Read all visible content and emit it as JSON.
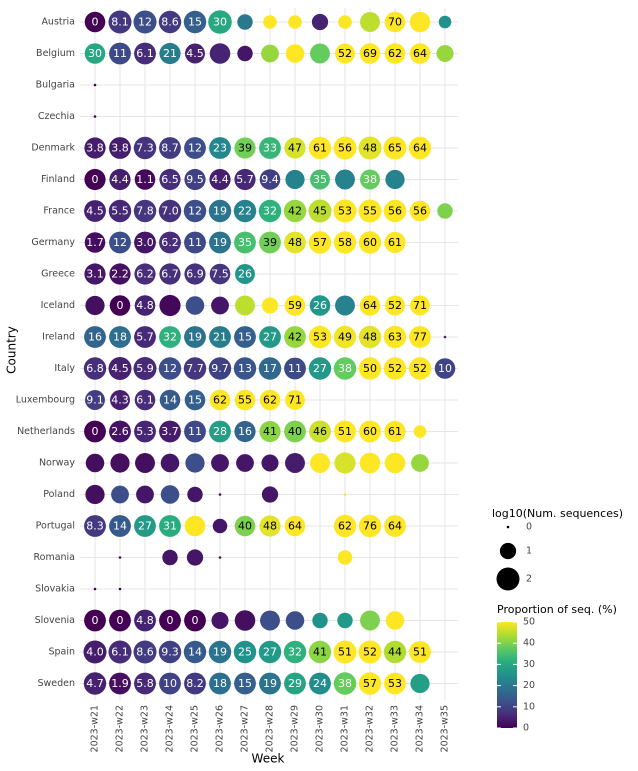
{
  "chart_data": {
    "type": "bubble",
    "x_label": "Week",
    "y_label": "Country",
    "weeks": [
      "2023-w21",
      "2023-w22",
      "2023-w23",
      "2023-w24",
      "2023-w25",
      "2023-w26",
      "2023-w27",
      "2023-w28",
      "2023-w29",
      "2023-w30",
      "2023-w31",
      "2023-w32",
      "2023-w33",
      "2023-w34",
      "2023-w35"
    ],
    "grid": true,
    "size_legend": {
      "title": "log10(Num. sequences)",
      "ticks": [
        0,
        1,
        2
      ]
    },
    "color_legend": {
      "title": "Proportion of seq. (%)",
      "clim": [
        0,
        50
      ],
      "ticks": [
        0,
        10,
        20,
        30,
        40,
        50
      ],
      "colormap": "viridis"
    },
    "rows": [
      {
        "name": "Austria",
        "values": [
          0,
          8.1,
          12,
          8.6,
          15,
          30,
          20,
          50,
          50,
          5,
          50,
          45,
          70,
          50,
          25
        ],
        "value_labels": [
          "0",
          "8.1",
          "12",
          "8.6",
          "15",
          "30",
          null,
          null,
          null,
          null,
          null,
          null,
          "70",
          null,
          null
        ],
        "sizes": [
          1.6,
          2.0,
          2.0,
          1.9,
          1.9,
          2.1,
          0.9,
          0.7,
          0.7,
          1.0,
          0.7,
          1.5,
          1.6,
          1.6,
          0.6
        ]
      },
      {
        "name": "Belgium",
        "values": [
          30,
          11,
          6.1,
          21,
          4.5,
          5,
          3,
          42,
          50,
          38,
          52,
          69,
          62,
          64,
          42
        ],
        "value_labels": [
          "30",
          "11",
          "6.1",
          "21",
          "4.5",
          null,
          null,
          null,
          null,
          null,
          "52",
          "69",
          "62",
          "64",
          null
        ],
        "sizes": [
          1.6,
          1.8,
          1.8,
          1.7,
          1.5,
          1.6,
          0.9,
          1.2,
          1.3,
          1.5,
          1.5,
          1.6,
          1.6,
          1.6,
          1.1
        ]
      },
      {
        "name": "Bulgaria",
        "values": [
          0,
          null,
          null,
          null,
          null,
          null,
          null,
          null,
          null,
          null,
          null,
          null,
          null,
          null,
          null
        ],
        "value_labels": [
          null,
          null,
          null,
          null,
          null,
          null,
          null,
          null,
          null,
          null,
          null,
          null,
          null,
          null,
          null
        ],
        "sizes": [
          0,
          null,
          null,
          null,
          null,
          null,
          null,
          null,
          null,
          null,
          null,
          null,
          null,
          null,
          null
        ]
      },
      {
        "name": "Czechia",
        "values": [
          0,
          null,
          null,
          null,
          null,
          null,
          null,
          null,
          null,
          null,
          null,
          null,
          null,
          null,
          null
        ],
        "value_labels": [
          null,
          null,
          null,
          null,
          null,
          null,
          null,
          null,
          null,
          null,
          null,
          null,
          null,
          null,
          null
        ],
        "sizes": [
          0,
          null,
          null,
          null,
          null,
          null,
          null,
          null,
          null,
          null,
          null,
          null,
          null,
          null,
          null
        ]
      },
      {
        "name": "Denmark",
        "values": [
          3.8,
          3.8,
          7.3,
          8.7,
          12,
          23,
          39,
          33,
          47,
          61,
          56,
          48,
          65,
          64,
          null
        ],
        "value_labels": [
          "3.8",
          "3.8",
          "7.3",
          "8.7",
          "12",
          "23",
          "39",
          "33",
          "47",
          "61",
          "56",
          "48",
          "65",
          "64",
          null
        ],
        "sizes": [
          1.7,
          1.8,
          1.9,
          1.8,
          1.8,
          1.8,
          1.7,
          1.8,
          1.7,
          1.9,
          2.0,
          2.0,
          2.0,
          1.9,
          null
        ]
      },
      {
        "name": "Finland",
        "values": [
          0,
          4.4,
          1.1,
          6.5,
          9.5,
          4.4,
          5.7,
          9.4,
          22,
          35,
          22,
          38,
          22,
          null,
          null
        ],
        "value_labels": [
          "0",
          "4.4",
          "1.1",
          "6.5",
          "9.5",
          "4.4",
          "5.7",
          "9.4",
          null,
          "35",
          null,
          "38",
          null,
          null,
          null
        ],
        "sizes": [
          1.7,
          1.7,
          1.6,
          1.7,
          1.7,
          1.7,
          1.7,
          1.6,
          1.4,
          1.5,
          1.5,
          1.5,
          1.4,
          null,
          null
        ]
      },
      {
        "name": "France",
        "values": [
          4.5,
          5.5,
          7.8,
          7.0,
          12,
          19,
          22,
          32,
          42,
          45,
          53,
          55,
          56,
          56,
          40
        ],
        "value_labels": [
          "4.5",
          "5.5",
          "7.8",
          "7.0",
          "12",
          "19",
          "22",
          "32",
          "42",
          "45",
          "53",
          "55",
          "56",
          "56",
          null
        ],
        "sizes": [
          1.8,
          1.9,
          1.9,
          1.9,
          1.9,
          1.9,
          1.9,
          1.9,
          1.9,
          2.0,
          2.0,
          2.0,
          1.9,
          1.6,
          0.9
        ]
      },
      {
        "name": "Germany",
        "values": [
          1.7,
          12,
          3.0,
          6.2,
          11,
          19,
          35,
          39,
          48,
          57,
          58,
          60,
          61,
          null,
          null
        ],
        "value_labels": [
          "1.7",
          "12",
          "3.0",
          "6.2",
          "11",
          "19",
          "35",
          "39",
          "48",
          "57",
          "58",
          "60",
          "61",
          null,
          null
        ],
        "sizes": [
          1.6,
          1.8,
          1.8,
          1.8,
          1.8,
          1.8,
          1.8,
          1.8,
          1.8,
          1.9,
          1.9,
          1.9,
          1.7,
          null,
          null
        ]
      },
      {
        "name": "Greece",
        "values": [
          3.1,
          2.2,
          6.2,
          6.7,
          6.9,
          7.5,
          26,
          null,
          null,
          null,
          null,
          null,
          null,
          null,
          null
        ],
        "value_labels": [
          "3.1",
          "2.2",
          "6.2",
          "6.7",
          "6.9",
          "7.5",
          "26",
          null,
          null,
          null,
          null,
          null,
          null,
          null,
          null
        ],
        "sizes": [
          1.7,
          1.7,
          1.7,
          1.7,
          1.7,
          1.6,
          1.5,
          null,
          null,
          null,
          null,
          null,
          null,
          null,
          null
        ]
      },
      {
        "name": "Iceland",
        "values": [
          2,
          0,
          4.8,
          1,
          12,
          3,
          45,
          50,
          59,
          26,
          22,
          64,
          52,
          71,
          null
        ],
        "value_labels": [
          null,
          "0",
          "4.8",
          null,
          null,
          null,
          null,
          null,
          "59",
          "26",
          null,
          "64",
          "52",
          "71",
          null
        ],
        "sizes": [
          1.4,
          1.6,
          1.6,
          1.7,
          1.3,
          1.2,
          1.5,
          1.0,
          1.6,
          1.6,
          1.5,
          1.6,
          1.5,
          1.5,
          null
        ]
      },
      {
        "name": "Ireland",
        "values": [
          16,
          18,
          5.7,
          32,
          19,
          21,
          15,
          27,
          42,
          53,
          49,
          48,
          63,
          77,
          5
        ],
        "value_labels": [
          "16",
          "18",
          "5.7",
          "32",
          "19",
          "21",
          "15",
          "27",
          "42",
          "53",
          "49",
          "48",
          "63",
          "77",
          null
        ],
        "sizes": [
          1.8,
          1.8,
          1.8,
          1.8,
          1.8,
          1.8,
          1.8,
          1.8,
          1.8,
          1.9,
          1.9,
          1.9,
          1.9,
          1.8,
          0
        ]
      },
      {
        "name": "Italy",
        "values": [
          6.8,
          4.5,
          5.9,
          12,
          7.7,
          9.7,
          13,
          17,
          11,
          27,
          38,
          50,
          52,
          52,
          10
        ],
        "value_labels": [
          "6.8",
          "4.5",
          "5.9",
          "12",
          "7.7",
          "9.7",
          "13",
          "17",
          "11",
          "27",
          "38",
          "50",
          "52",
          "52",
          "10"
        ],
        "sizes": [
          1.9,
          2.0,
          2.0,
          1.9,
          1.9,
          1.9,
          1.9,
          1.9,
          1.8,
          1.9,
          1.9,
          1.9,
          1.9,
          1.9,
          1.6
        ]
      },
      {
        "name": "Luxembourg",
        "values": [
          9.1,
          4.3,
          6.1,
          14,
          15,
          62,
          55,
          62,
          71,
          null,
          null,
          null,
          null,
          null,
          null
        ],
        "value_labels": [
          "9.1",
          "4.3",
          "6.1",
          "14",
          "15",
          "62",
          "55",
          "62",
          "71",
          null,
          null,
          null,
          null,
          null,
          null
        ],
        "sizes": [
          1.5,
          1.5,
          1.6,
          1.6,
          1.6,
          1.6,
          1.6,
          1.6,
          1.5,
          null,
          null,
          null,
          null,
          null,
          null
        ]
      },
      {
        "name": "Netherlands",
        "values": [
          0,
          2.6,
          5.3,
          3.7,
          11,
          28,
          16,
          41,
          40,
          46,
          51,
          60,
          61,
          50,
          null
        ],
        "value_labels": [
          "0",
          "2.6",
          "5.3",
          "3.7",
          "11",
          "28",
          "16",
          "41",
          "40",
          "46",
          "51",
          "60",
          "61",
          null,
          null
        ],
        "sizes": [
          1.8,
          1.8,
          1.8,
          1.8,
          1.8,
          1.8,
          1.7,
          1.7,
          1.8,
          1.8,
          1.8,
          1.8,
          1.7,
          0.6,
          null
        ]
      },
      {
        "name": "Norway",
        "values": [
          2,
          2,
          2,
          3,
          12,
          3,
          3,
          3,
          4,
          50,
          47,
          50,
          50,
          42,
          null
        ],
        "value_labels": [
          null,
          null,
          null,
          null,
          null,
          null,
          null,
          null,
          null,
          null,
          null,
          null,
          null,
          null,
          null
        ],
        "sizes": [
          1.3,
          1.4,
          1.5,
          1.3,
          1.4,
          1.2,
          1.2,
          1.1,
          1.5,
          1.5,
          1.7,
          1.6,
          1.6,
          1.2,
          null
        ]
      },
      {
        "name": "Poland",
        "values": [
          2,
          12,
          3,
          12,
          3,
          2,
          null,
          3,
          null,
          null,
          50,
          null,
          null,
          null,
          null
        ],
        "value_labels": [
          null,
          null,
          null,
          null,
          null,
          null,
          null,
          null,
          null,
          null,
          null,
          null,
          null,
          null,
          null
        ],
        "sizes": [
          1.4,
          1.2,
          1.2,
          1.3,
          0.9,
          0,
          null,
          1.0,
          null,
          null,
          0,
          null,
          null,
          null,
          null
        ]
      },
      {
        "name": "Portugal",
        "values": [
          8.3,
          14,
          27,
          31,
          50,
          3,
          40,
          48,
          64,
          null,
          62,
          76,
          64,
          null,
          null
        ],
        "value_labels": [
          "8.3",
          "14",
          "27",
          "31",
          null,
          null,
          "40",
          "48",
          "64",
          null,
          "62",
          "76",
          "64",
          null,
          null
        ],
        "sizes": [
          1.8,
          1.8,
          1.8,
          1.8,
          1.6,
          0.8,
          1.6,
          1.7,
          1.6,
          null,
          1.9,
          1.9,
          1.8,
          null,
          null
        ]
      },
      {
        "name": "Romania",
        "values": [
          null,
          2,
          null,
          3,
          3,
          2,
          null,
          null,
          null,
          null,
          50,
          null,
          null,
          null,
          null
        ],
        "value_labels": [
          null,
          null,
          null,
          null,
          null,
          null,
          null,
          null,
          null,
          null,
          null,
          null,
          null,
          null,
          null
        ],
        "sizes": [
          null,
          0,
          null,
          0.9,
          1.0,
          0,
          null,
          null,
          null,
          null,
          0.8,
          null,
          null,
          null,
          null
        ]
      },
      {
        "name": "Slovakia",
        "values": [
          0,
          0,
          null,
          null,
          null,
          null,
          null,
          null,
          null,
          null,
          null,
          null,
          null,
          null,
          null
        ],
        "value_labels": [
          null,
          null,
          null,
          null,
          null,
          null,
          null,
          null,
          null,
          null,
          null,
          null,
          null,
          null,
          null
        ],
        "sizes": [
          0,
          0,
          null,
          null,
          null,
          null,
          null,
          null,
          null,
          null,
          null,
          null,
          null,
          null,
          null
        ]
      },
      {
        "name": "Slovenia",
        "values": [
          0,
          0,
          4.8,
          0,
          0,
          3,
          2,
          12,
          12,
          25,
          27,
          40,
          50,
          null,
          null
        ],
        "value_labels": [
          "0",
          "0",
          "4.8",
          "0",
          "0",
          null,
          null,
          null,
          null,
          null,
          null,
          null,
          null,
          null,
          null
        ],
        "sizes": [
          1.8,
          1.8,
          1.8,
          1.8,
          1.8,
          1.1,
          1.6,
          1.5,
          1.3,
          0.9,
          0.9,
          1.5,
          1.3,
          null,
          null
        ]
      },
      {
        "name": "Spain",
        "values": [
          4.0,
          6.1,
          8.6,
          9.3,
          14,
          19,
          25,
          27,
          32,
          41,
          51,
          52,
          44,
          51,
          null
        ],
        "value_labels": [
          "4.0",
          "6.1",
          "8.6",
          "9.3",
          "14",
          "19",
          "25",
          "27",
          "32",
          "41",
          "51",
          "52",
          "44",
          "51",
          null
        ],
        "sizes": [
          2.0,
          2.0,
          2.0,
          1.9,
          1.9,
          1.9,
          1.9,
          1.9,
          1.9,
          1.9,
          2.0,
          2.0,
          1.9,
          1.8,
          null
        ]
      },
      {
        "name": "Sweden",
        "values": [
          4.7,
          1.9,
          5.8,
          10,
          8.2,
          18,
          15,
          19,
          29,
          24,
          38,
          57,
          53,
          28,
          null
        ],
        "value_labels": [
          "4.7",
          "1.9",
          "5.8",
          "10",
          "8.2",
          "18",
          "15",
          "19",
          "29",
          "24",
          "38",
          "57",
          "53",
          null,
          null
        ],
        "sizes": [
          1.9,
          1.8,
          1.8,
          1.8,
          1.8,
          1.8,
          1.8,
          1.8,
          1.8,
          1.8,
          1.9,
          1.9,
          1.8,
          1.4,
          null
        ]
      }
    ]
  }
}
